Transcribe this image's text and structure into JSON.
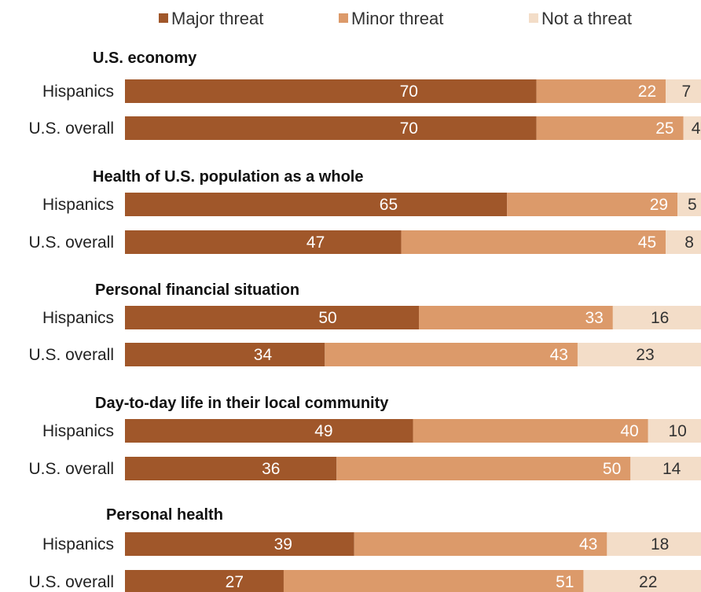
{
  "chart_data": {
    "type": "bar",
    "orientation": "horizontal",
    "stacked": true,
    "xlim": [
      0,
      100
    ],
    "legend_position": "top",
    "colors": {
      "Major threat": "#a0572a",
      "Minor threat": "#dc9a6a",
      "Not a threat": "#f3ddc8"
    },
    "label_colors": {
      "Major threat": "#ffffff",
      "Minor threat": "#ffffff",
      "Not a threat": "#333333"
    },
    "series_names": [
      "Major threat",
      "Minor threat",
      "Not a threat"
    ],
    "groups": [
      {
        "title": "U.S. economy",
        "rows": [
          {
            "label": "Hispanics",
            "values": [
              70,
              22,
              7
            ]
          },
          {
            "label": "U.S. overall",
            "values": [
              70,
              25,
              4
            ]
          }
        ]
      },
      {
        "title": "Health of U.S. population as a whole",
        "rows": [
          {
            "label": "Hispanics",
            "values": [
              65,
              29,
              5
            ]
          },
          {
            "label": "U.S. overall",
            "values": [
              47,
              45,
              8
            ]
          }
        ]
      },
      {
        "title": "Personal financial situation",
        "rows": [
          {
            "label": "Hispanics",
            "values": [
              50,
              33,
              16
            ]
          },
          {
            "label": "U.S. overall",
            "values": [
              34,
              43,
              23
            ]
          }
        ]
      },
      {
        "title": "Day-to-day life in their local community",
        "rows": [
          {
            "label": "Hispanics",
            "values": [
              49,
              40,
              10
            ]
          },
          {
            "label": "U.S. overall",
            "values": [
              36,
              50,
              14
            ]
          }
        ]
      },
      {
        "title": "Personal health",
        "rows": [
          {
            "label": "Hispanics",
            "values": [
              39,
              43,
              18
            ]
          },
          {
            "label": "U.S. overall",
            "values": [
              27,
              51,
              22
            ]
          }
        ]
      }
    ]
  }
}
